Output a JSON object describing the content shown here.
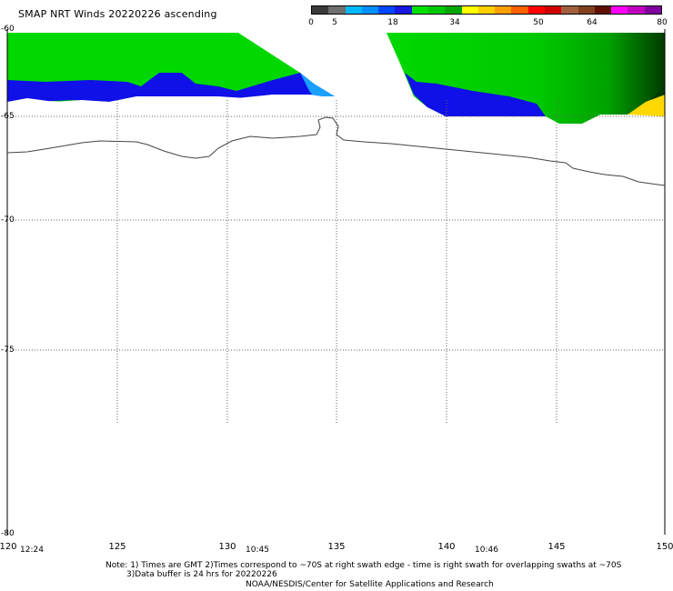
{
  "header": {
    "title": "SMAP NRT Winds 20220226 ascending"
  },
  "colorbar": {
    "tick_labels": [
      "0",
      "5",
      "18",
      "34",
      "50",
      "64",
      "80"
    ],
    "colors": [
      "#3a3a3a",
      "#6e6e6e",
      "#00b8ff",
      "#0090ff",
      "#0048ff",
      "#1818e0",
      "#00e000",
      "#00c800",
      "#00a800",
      "#ffff00",
      "#ffd000",
      "#ffa000",
      "#ff6000",
      "#ff0000",
      "#d00000",
      "#a06040",
      "#804020",
      "#601000",
      "#ff00ff",
      "#c000c0",
      "#8000a0"
    ]
  },
  "axes": {
    "lat_labels": [
      "-60",
      "-65",
      "-70",
      "-75",
      "-80"
    ],
    "lon_labels": [
      "120",
      "125",
      "130",
      "135",
      "140",
      "145",
      "150"
    ],
    "time_labels": [
      "12:24",
      "10:45",
      "10:46"
    ]
  },
  "map": {
    "swath_colors": {
      "green": "#00d800",
      "blue": "#1010e8",
      "lightblue": "#1aa0ff",
      "yellow": "#ffd800",
      "darkgreen": "#004400"
    }
  },
  "footer": {
    "note_line1": "Note: 1) Times are GMT 2)Times correspond to ~70S at right swath edge - time is right swath for overlapping swaths at ~70S",
    "note_line2": "3)Data buffer is 24 hrs for 20220226",
    "credit": "NOAA/NESDIS/Center for Satellite Applications and Research"
  }
}
